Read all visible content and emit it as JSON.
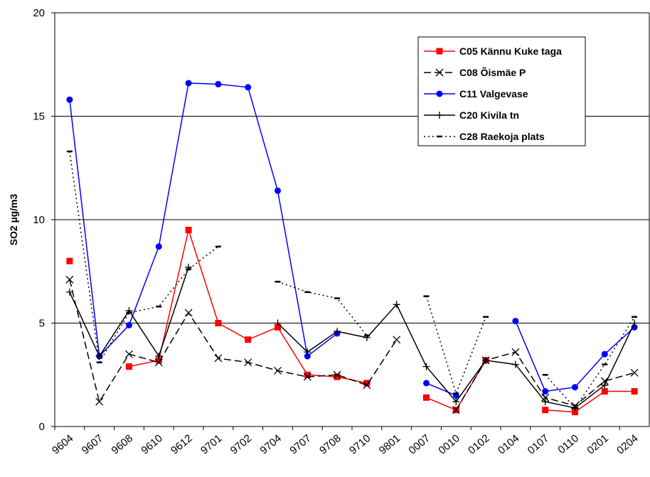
{
  "chart_data": {
    "type": "line",
    "y_label": "SO2 µg/m3",
    "categories": [
      "9604",
      "9607",
      "9608",
      "9610",
      "9612",
      "9701",
      "9702",
      "9704",
      "9707",
      "9708",
      "9710",
      "9801",
      "0007",
      "0010",
      "0102",
      "0104",
      "0107",
      "0110",
      "0201",
      "0204"
    ],
    "ylim": [
      0,
      20
    ],
    "yticks": [
      0,
      5,
      10,
      15,
      20
    ],
    "grid": true,
    "legend": "upper-right",
    "series": [
      {
        "name": "C05 Kännu Kuke taga",
        "color": "#ff0000",
        "marker": "square",
        "dash": "solid",
        "values": [
          8.0,
          null,
          2.9,
          3.2,
          9.5,
          5.0,
          4.2,
          4.8,
          2.5,
          2.4,
          2.1,
          null,
          1.4,
          0.8,
          3.2,
          null,
          0.8,
          0.7,
          1.7,
          1.7
        ]
      },
      {
        "name": "C08 Õismäe P",
        "color": "#000000",
        "marker": "x",
        "dash": "longdash",
        "values": [
          7.1,
          1.2,
          3.5,
          3.1,
          5.5,
          3.3,
          3.1,
          2.7,
          2.4,
          2.5,
          2.0,
          4.2,
          null,
          0.8,
          3.2,
          3.6,
          1.4,
          1.0,
          2.2,
          2.6
        ]
      },
      {
        "name": "C11 Valgevase",
        "color": "#0000ff",
        "marker": "circle",
        "dash": "solid",
        "values": [
          15.8,
          3.4,
          4.9,
          8.7,
          16.6,
          16.55,
          16.4,
          11.4,
          3.4,
          4.5,
          null,
          null,
          2.1,
          1.5,
          null,
          5.1,
          1.7,
          1.9,
          3.5,
          4.8
        ]
      },
      {
        "name": "C20 Kivila tn",
        "color": "#000000",
        "marker": "plus",
        "dash": "solid",
        "values": [
          6.5,
          3.4,
          5.6,
          3.4,
          7.7,
          null,
          null,
          5.0,
          3.6,
          4.6,
          4.3,
          5.9,
          2.9,
          1.2,
          3.2,
          3.0,
          1.2,
          0.9,
          2.0,
          5.0
        ]
      },
      {
        "name": "C28 Raekoja plats",
        "color": "#000000",
        "marker": "dash",
        "dash": "dot",
        "values": [
          13.3,
          3.1,
          5.5,
          5.8,
          7.6,
          8.7,
          null,
          7.0,
          6.5,
          6.2,
          4.4,
          null,
          6.3,
          1.6,
          5.3,
          null,
          2.5,
          0.9,
          3.0,
          5.3
        ]
      }
    ]
  }
}
